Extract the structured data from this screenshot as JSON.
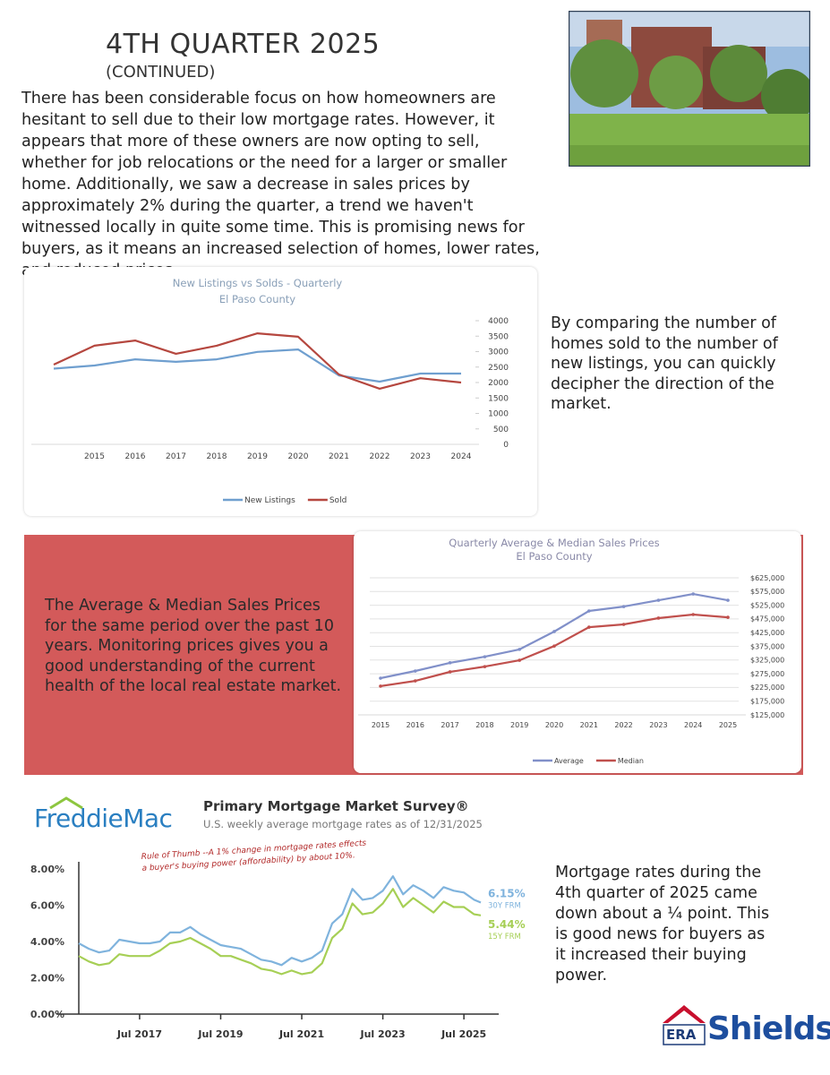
{
  "header": {
    "title": "4TH QUARTER 2025",
    "subtitle": "(CONTINUED)"
  },
  "intro": "There has been considerable focus on how homeowners are hesitant to sell due to their low mortgage rates. However, it appears that more of these owners are now opting to sell, whether for job relocations or the need for a larger or smaller home. Additionally, we saw a decrease in sales prices by approximately 2% during the quarter, a trend we haven't witnessed locally in quite some time. This is promising news for buyers, as it means an increased selection of homes, lower rates, and reduced prices.",
  "listings_note": "By comparing the number of homes sold to the number of new listings, you can quickly decipher the direction of the market.",
  "prices_note": "The Average & Median Sales Prices for the same period over the past 10 years. Monitoring prices gives you a good understanding of the current health of the local real estate market.",
  "rates_note": "Mortgage rates during the 4th quarter of 2025 came down about a ¼ point. This is good news for buyers as it increased their buying power.",
  "freddie_mac_logo": "FreddieMac",
  "brand": {
    "mark": "ERA",
    "name": "Shields"
  },
  "chart_data": [
    {
      "type": "line",
      "title": "New Listings vs Solds - Quarterly",
      "subtitle": "El Paso County",
      "categories": [
        null,
        "2015",
        "2016",
        "2017",
        "2018",
        "2019",
        "2020",
        "2021",
        "2022",
        "2023",
        "2024"
      ],
      "series": [
        {
          "name": "New Listings",
          "color": "#6f9fcf",
          "values": [
            2450,
            2550,
            2750,
            2670,
            2750,
            2990,
            3070,
            2230,
            2030,
            2290,
            2290
          ]
        },
        {
          "name": "Sold",
          "color": "#b5473f",
          "values": [
            2580,
            3190,
            3360,
            2930,
            3190,
            3590,
            3480,
            2260,
            1800,
            2140,
            2000
          ]
        }
      ],
      "ylim": [
        0,
        4000
      ],
      "yticks": [
        0,
        500,
        1000,
        1500,
        2000,
        2500,
        3000,
        3500,
        4000
      ],
      "grid": false,
      "legend": "bottom"
    },
    {
      "type": "line",
      "title": "Quarterly Average & Median Sales Prices",
      "subtitle": "El Paso County",
      "categories": [
        "2015",
        "2016",
        "2017",
        "2018",
        "2019",
        "2020",
        "2021",
        "2022",
        "2023",
        "2024",
        "2025"
      ],
      "series": [
        {
          "name": "Average",
          "color": "#8190c9",
          "values": [
            259000,
            285000,
            315000,
            337000,
            364000,
            429000,
            504000,
            520000,
            543000,
            566000,
            543000
          ]
        },
        {
          "name": "Median",
          "color": "#c0504d",
          "values": [
            230000,
            249000,
            282000,
            301000,
            324000,
            376000,
            445000,
            455000,
            478000,
            491000,
            481000
          ]
        }
      ],
      "ylim": [
        125000,
        625000
      ],
      "yticks": [
        {
          "value": 125000,
          "label": "$125,000"
        },
        {
          "value": 175000,
          "label": "$175,000"
        },
        {
          "value": 225000,
          "label": "$225,000"
        },
        {
          "value": 275000,
          "label": "$275,000"
        },
        {
          "value": 325000,
          "label": "$325,000"
        },
        {
          "value": 375000,
          "label": "$375,000"
        },
        {
          "value": 425000,
          "label": "$425,000"
        },
        {
          "value": 475000,
          "label": "$475,000"
        },
        {
          "value": 525000,
          "label": "$525,000"
        },
        {
          "value": 575000,
          "label": "$575,000"
        },
        {
          "value": 625000,
          "label": "$625,000"
        }
      ],
      "grid": true,
      "legend": "bottom",
      "markers": true
    },
    {
      "type": "line",
      "title": "Primary Mortgage Market Survey®",
      "subtitle": "U.S. weekly average mortgage rates as of 12/31/2025",
      "annotation": "Rule of Thumb --A 1% change in mortgage rates effects a buyer's buying power (affordability) by about 10%.",
      "x": [
        "2016-01",
        "2016-04",
        "2016-07",
        "2016-10",
        "2017-01",
        "2017-04",
        "2017-07",
        "2017-10",
        "2018-01",
        "2018-04",
        "2018-07",
        "2018-10",
        "2019-01",
        "2019-04",
        "2019-07",
        "2019-10",
        "2020-01",
        "2020-04",
        "2020-07",
        "2020-10",
        "2021-01",
        "2021-04",
        "2021-07",
        "2021-10",
        "2022-01",
        "2022-04",
        "2022-07",
        "2022-10",
        "2023-01",
        "2023-04",
        "2023-07",
        "2023-10",
        "2024-01",
        "2024-04",
        "2024-07",
        "2024-10",
        "2025-01",
        "2025-04",
        "2025-07",
        "2025-10",
        "2025-12"
      ],
      "xlim": [
        "2016-01",
        "2025-12"
      ],
      "xticks": [
        {
          "value": "2017-07",
          "label": "Jul 2017"
        },
        {
          "value": "2019-07",
          "label": "Jul 2019"
        },
        {
          "value": "2021-07",
          "label": "Jul 2021"
        },
        {
          "value": "2023-07",
          "label": "Jul 2023"
        },
        {
          "value": "2025-07",
          "label": "Jul 2025"
        }
      ],
      "series": [
        {
          "name": "30Y FRM",
          "color": "#7fb3dd",
          "last_label": "6.15%",
          "values": [
            3.9,
            3.6,
            3.4,
            3.5,
            4.1,
            4.0,
            3.9,
            3.9,
            4.0,
            4.5,
            4.5,
            4.8,
            4.4,
            4.1,
            3.8,
            3.7,
            3.6,
            3.3,
            3.0,
            2.9,
            2.7,
            3.1,
            2.9,
            3.1,
            3.5,
            5.0,
            5.5,
            6.9,
            6.3,
            6.4,
            6.8,
            7.6,
            6.6,
            7.1,
            6.8,
            6.4,
            7.0,
            6.8,
            6.7,
            6.3,
            6.15
          ]
        },
        {
          "name": "15Y FRM",
          "color": "#a6cf55",
          "last_label": "5.44%",
          "values": [
            3.2,
            2.9,
            2.7,
            2.8,
            3.3,
            3.2,
            3.2,
            3.2,
            3.5,
            3.9,
            4.0,
            4.2,
            3.9,
            3.6,
            3.2,
            3.2,
            3.0,
            2.8,
            2.5,
            2.4,
            2.2,
            2.4,
            2.2,
            2.3,
            2.8,
            4.2,
            4.7,
            6.1,
            5.5,
            5.6,
            6.1,
            6.9,
            5.9,
            6.4,
            6.0,
            5.6,
            6.2,
            5.9,
            5.9,
            5.5,
            5.44
          ]
        }
      ],
      "ylim": [
        0,
        8
      ],
      "yticks": [
        {
          "value": 0,
          "label": "0.00%"
        },
        {
          "value": 2,
          "label": "2.00%"
        },
        {
          "value": 4,
          "label": "4.00%"
        },
        {
          "value": 6,
          "label": "6.00%"
        },
        {
          "value": 8,
          "label": "8.00%"
        }
      ],
      "grid": false
    }
  ]
}
